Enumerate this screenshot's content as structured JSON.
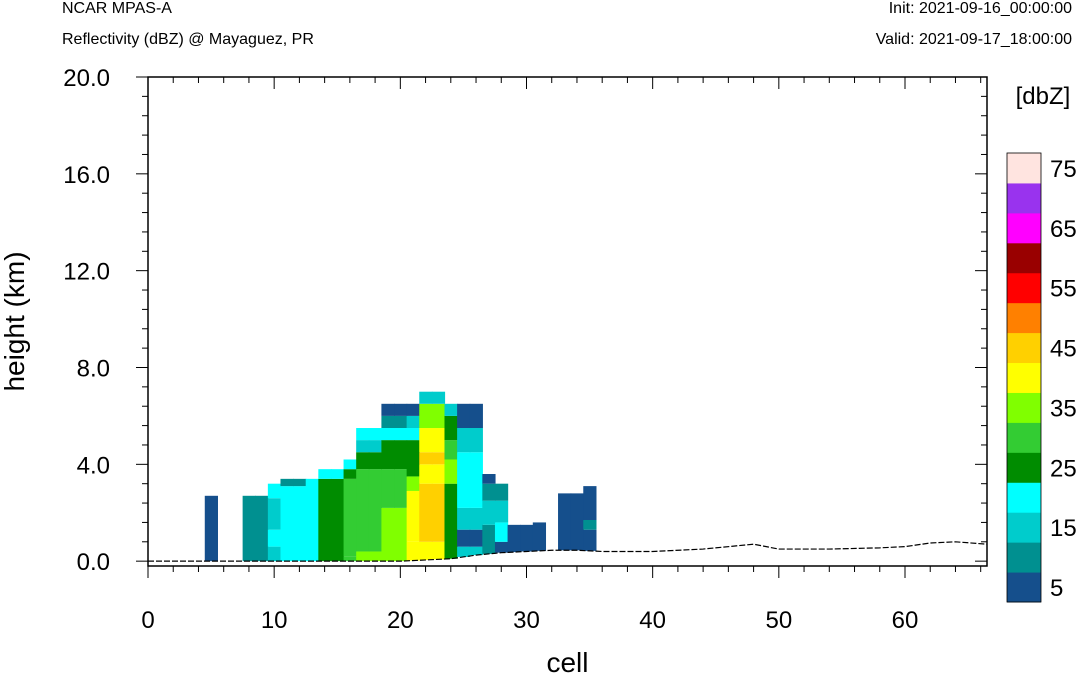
{
  "header": {
    "model": "NCAR MPAS-A",
    "subtitle": "Reflectivity (dBZ) @ Mayaguez, PR",
    "init": "Init: 2021-09-16_00:00:00",
    "valid": "Valid: 2021-09-17_18:00:00"
  },
  "chart_data": {
    "type": "heatmap",
    "xlabel": "cell",
    "ylabel": "height (km)",
    "xlim": [
      0,
      66.5
    ],
    "ylim": [
      -0.2,
      20.0
    ],
    "x_ticks": [
      "0",
      "10",
      "20",
      "30",
      "40",
      "50",
      "60"
    ],
    "y_ticks": [
      "0.0",
      "4.0",
      "8.0",
      "12.0",
      "16.0",
      "20.0"
    ],
    "x_tick_values": [
      0,
      10,
      20,
      30,
      40,
      50,
      60
    ],
    "y_tick_values": [
      0,
      4,
      8,
      12,
      16,
      20
    ],
    "colorbar": {
      "units": "[dbZ]",
      "levels": [
        5,
        10,
        15,
        20,
        25,
        30,
        35,
        40,
        45,
        50,
        55,
        60,
        65,
        70,
        75
      ],
      "labels": [
        "5",
        "15",
        "25",
        "35",
        "45",
        "55",
        "65",
        "75"
      ],
      "colors": [
        "#154f8c",
        "#009090",
        "#00cccc",
        "#00ffff",
        "#008c00",
        "#33cc33",
        "#80ff00",
        "#ffff00",
        "#ffd000",
        "#ff8000",
        "#ff0000",
        "#990000",
        "#ff00ff",
        "#9933ee",
        "#ffe4e0"
      ]
    },
    "terrain": {
      "x": [
        0,
        5,
        10,
        15,
        20,
        24,
        26,
        28,
        30,
        32,
        34,
        36,
        40,
        44,
        48,
        50,
        54,
        58,
        60,
        62,
        64,
        66.5
      ],
      "height_km": [
        0,
        0,
        0,
        0,
        0,
        0.1,
        0.25,
        0.35,
        0.4,
        0.45,
        0.45,
        0.4,
        0.4,
        0.5,
        0.7,
        0.5,
        0.5,
        0.55,
        0.6,
        0.75,
        0.8,
        0.7
      ]
    },
    "columns": [
      {
        "x": 5,
        "layers": [
          {
            "top": 2.7,
            "dbz": 5
          }
        ]
      },
      {
        "x": 8,
        "layers": [
          {
            "top": 2.7,
            "dbz": 10
          }
        ]
      },
      {
        "x": 9,
        "layers": [
          {
            "top": 2.7,
            "dbz": 10
          }
        ]
      },
      {
        "x": 10,
        "layers": [
          {
            "top": 0.6,
            "dbz": 15
          },
          {
            "top": 1.3,
            "dbz": 20
          },
          {
            "top": 2.6,
            "dbz": 15
          },
          {
            "top": 3.2,
            "dbz": 20
          }
        ]
      },
      {
        "x": 11,
        "layers": [
          {
            "top": 3.1,
            "dbz": 20
          },
          {
            "top": 3.4,
            "dbz": 10
          }
        ]
      },
      {
        "x": 12,
        "layers": [
          {
            "top": 3.1,
            "dbz": 20
          },
          {
            "top": 3.4,
            "dbz": 10
          }
        ]
      },
      {
        "x": 13,
        "layers": [
          {
            "top": 3.4,
            "dbz": 20
          }
        ]
      },
      {
        "x": 14,
        "layers": [
          {
            "top": 3.4,
            "dbz": 25
          },
          {
            "top": 3.8,
            "dbz": 20
          }
        ]
      },
      {
        "x": 15,
        "layers": [
          {
            "top": 3.4,
            "dbz": 25
          },
          {
            "top": 3.8,
            "dbz": 20
          }
        ]
      },
      {
        "x": 16,
        "layers": [
          {
            "top": 0.2,
            "dbz": 30
          },
          {
            "top": 3.4,
            "dbz": 30
          },
          {
            "top": 3.8,
            "dbz": 25
          },
          {
            "top": 4.2,
            "dbz": 20
          }
        ]
      },
      {
        "x": 17,
        "layers": [
          {
            "top": 0.4,
            "dbz": 35
          },
          {
            "top": 3.8,
            "dbz": 30
          },
          {
            "top": 4.5,
            "dbz": 25
          },
          {
            "top": 5.0,
            "dbz": 15
          },
          {
            "top": 5.5,
            "dbz": 20
          }
        ]
      },
      {
        "x": 18,
        "layers": [
          {
            "top": 0.4,
            "dbz": 35
          },
          {
            "top": 3.8,
            "dbz": 30
          },
          {
            "top": 4.5,
            "dbz": 25
          },
          {
            "top": 5.0,
            "dbz": 15
          },
          {
            "top": 5.5,
            "dbz": 20
          }
        ]
      },
      {
        "x": 19,
        "layers": [
          {
            "top": 2.2,
            "dbz": 35
          },
          {
            "top": 3.8,
            "dbz": 30
          },
          {
            "top": 5.0,
            "dbz": 25
          },
          {
            "top": 5.5,
            "dbz": 20
          },
          {
            "top": 6.0,
            "dbz": 10
          },
          {
            "top": 6.5,
            "dbz": 5
          }
        ]
      },
      {
        "x": 20,
        "layers": [
          {
            "top": 2.2,
            "dbz": 35
          },
          {
            "top": 3.8,
            "dbz": 30
          },
          {
            "top": 5.0,
            "dbz": 25
          },
          {
            "top": 5.5,
            "dbz": 20
          },
          {
            "top": 6.0,
            "dbz": 10
          },
          {
            "top": 6.5,
            "dbz": 5
          }
        ]
      },
      {
        "x": 21,
        "layers": [
          {
            "top": 0.8,
            "dbz": 40
          },
          {
            "top": 2.9,
            "dbz": 40
          },
          {
            "top": 3.5,
            "dbz": 35
          },
          {
            "top": 5.0,
            "dbz": 25
          },
          {
            "top": 5.5,
            "dbz": 20
          },
          {
            "top": 6.0,
            "dbz": 15
          },
          {
            "top": 6.5,
            "dbz": 5
          }
        ]
      },
      {
        "x": 22,
        "layers": [
          {
            "top": 0.8,
            "dbz": 40
          },
          {
            "top": 3.2,
            "dbz": 45
          },
          {
            "top": 4.0,
            "dbz": 40
          },
          {
            "top": 4.5,
            "dbz": 45
          },
          {
            "top": 5.5,
            "dbz": 40
          },
          {
            "top": 6.5,
            "dbz": 35
          },
          {
            "top": 7.0,
            "dbz": 15
          }
        ]
      },
      {
        "x": 23,
        "layers": [
          {
            "top": 0.8,
            "dbz": 40
          },
          {
            "top": 3.2,
            "dbz": 45
          },
          {
            "top": 4.0,
            "dbz": 40
          },
          {
            "top": 4.5,
            "dbz": 45
          },
          {
            "top": 5.5,
            "dbz": 40
          },
          {
            "top": 6.5,
            "dbz": 35
          },
          {
            "top": 7.0,
            "dbz": 15
          }
        ]
      },
      {
        "x": 24,
        "layers": [
          {
            "top": 3.2,
            "dbz": 25
          },
          {
            "top": 4.2,
            "dbz": 35
          },
          {
            "top": 5.0,
            "dbz": 30
          },
          {
            "top": 6.0,
            "dbz": 25
          },
          {
            "top": 6.5,
            "dbz": 15
          }
        ]
      },
      {
        "x": 25,
        "layers": [
          {
            "top": 0.6,
            "dbz": 15
          },
          {
            "top": 1.3,
            "dbz": 5
          },
          {
            "top": 2.2,
            "dbz": 15
          },
          {
            "top": 4.5,
            "dbz": 20
          },
          {
            "top": 5.5,
            "dbz": 15
          },
          {
            "top": 6.5,
            "dbz": 5
          }
        ]
      },
      {
        "x": 26,
        "layers": [
          {
            "top": 0.6,
            "dbz": 15
          },
          {
            "top": 1.3,
            "dbz": 5
          },
          {
            "top": 2.2,
            "dbz": 15
          },
          {
            "top": 4.5,
            "dbz": 20
          },
          {
            "top": 5.5,
            "dbz": 15
          },
          {
            "top": 6.5,
            "dbz": 5
          }
        ]
      },
      {
        "x": 27,
        "layers": [
          {
            "top": 1.5,
            "dbz": 10
          },
          {
            "top": 2.5,
            "dbz": 15
          },
          {
            "top": 3.2,
            "dbz": 10
          },
          {
            "top": 3.6,
            "dbz": 5
          }
        ]
      },
      {
        "x": 28,
        "layers": [
          {
            "top": 0.8,
            "dbz": 5
          },
          {
            "top": 1.6,
            "dbz": 20
          },
          {
            "top": 2.5,
            "dbz": 15
          },
          {
            "top": 3.2,
            "dbz": 10
          }
        ]
      },
      {
        "x": 29,
        "layers": [
          {
            "top": 1.5,
            "dbz": 5
          }
        ]
      },
      {
        "x": 30,
        "layers": [
          {
            "top": 1.5,
            "dbz": 5
          }
        ]
      },
      {
        "x": 31,
        "layers": [
          {
            "top": 1.6,
            "dbz": 5
          }
        ]
      },
      {
        "x": 33,
        "layers": [
          {
            "top": 2.8,
            "dbz": 5
          }
        ]
      },
      {
        "x": 34,
        "layers": [
          {
            "top": 2.8,
            "dbz": 5
          }
        ]
      },
      {
        "x": 35,
        "layers": [
          {
            "top": 1.3,
            "dbz": 5
          },
          {
            "top": 1.7,
            "dbz": 10
          },
          {
            "top": 3.1,
            "dbz": 5
          }
        ]
      }
    ]
  }
}
